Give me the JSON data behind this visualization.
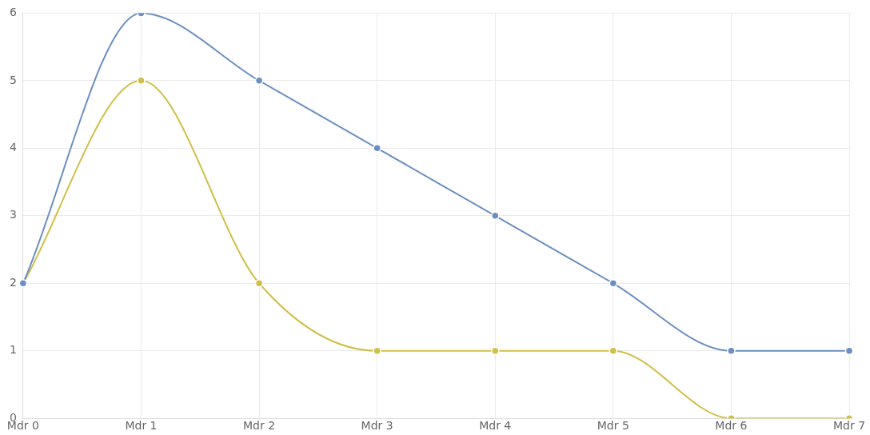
{
  "chart_data": {
    "type": "line",
    "categories": [
      "Mdr 0",
      "Mdr 1",
      "Mdr 2",
      "Mdr 3",
      "Mdr 4",
      "Mdr 5",
      "Mdr 6",
      "Mdr 7"
    ],
    "series": [
      {
        "color": "#6b8fc0",
        "values": [
          2,
          6,
          5,
          4,
          3,
          2,
          1,
          1
        ]
      },
      {
        "color": "#d0bf48",
        "values": [
          2,
          5,
          2,
          1,
          1,
          1,
          0,
          0
        ]
      }
    ],
    "ylim": [
      0,
      6
    ],
    "yticks": [
      0,
      1,
      2,
      3,
      4,
      5,
      6
    ],
    "grid": true,
    "legend": false,
    "marker": "circle"
  }
}
